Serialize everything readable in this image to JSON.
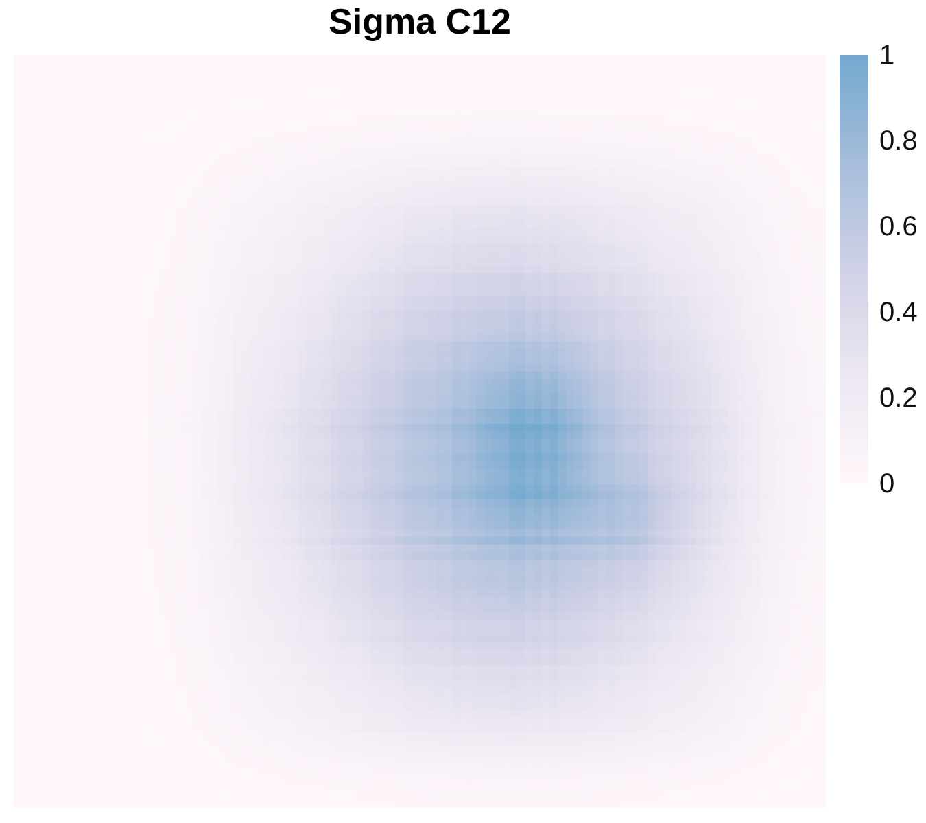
{
  "chart_data": {
    "type": "heatmap",
    "title": "Sigma C12",
    "xlabel": "",
    "ylabel": "",
    "grid": false,
    "legend_position": "right",
    "colorscale": {
      "min": 0,
      "max": 1,
      "colors": [
        "#fff7fb",
        "#ece7f2",
        "#d0d1e6",
        "#a6bddb",
        "#74a9cf"
      ],
      "tick_labels": [
        "1",
        "0.8",
        "0.6",
        "0.4",
        "0.2",
        "0"
      ]
    },
    "rows": 100,
    "cols": 100,
    "value_profile": {
      "description_note": "",
      "peak_value": 0.95,
      "peak_row_fraction": 0.53,
      "peak_col_fraction": 0.62
    }
  }
}
